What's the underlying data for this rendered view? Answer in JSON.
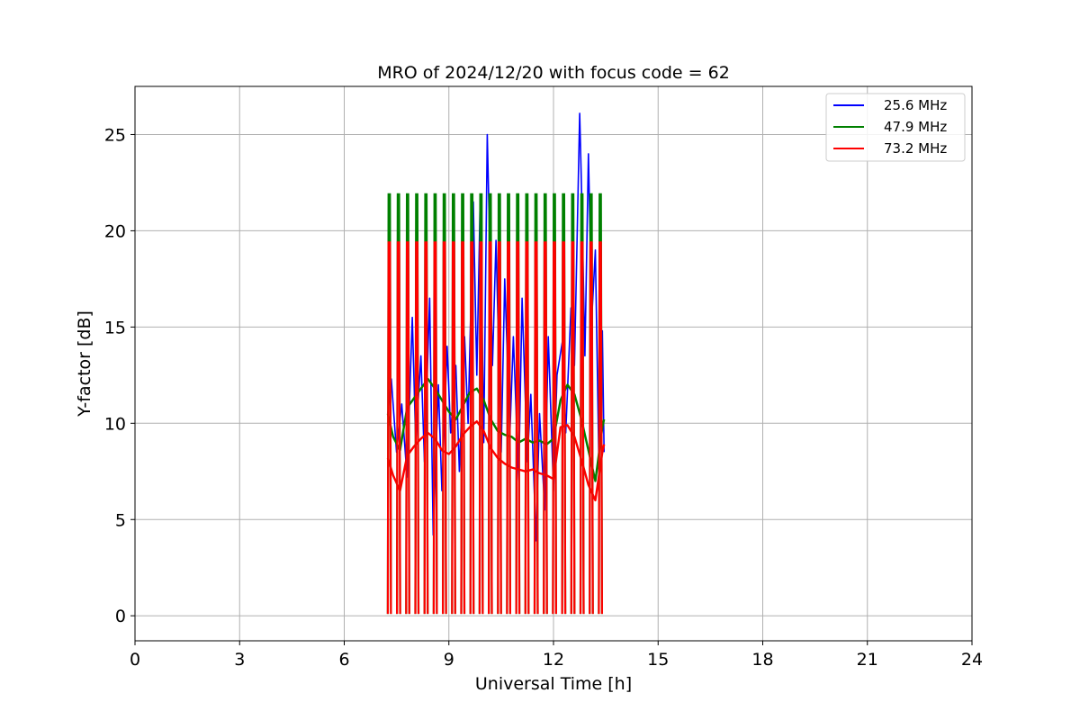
{
  "chart_data": {
    "type": "line",
    "title": "MRO of 2024/12/20 with focus code = 62",
    "xlabel": "Universal Time [h]",
    "ylabel": "Y-factor [dB]",
    "xlim": [
      0,
      24
    ],
    "ylim": [
      -1.3,
      27.5
    ],
    "xticks": [
      0,
      3,
      6,
      9,
      12,
      15,
      18,
      21,
      24
    ],
    "yticks": [
      0,
      5,
      10,
      15,
      20,
      25
    ],
    "grid": true,
    "legend_position": "top-right",
    "series": [
      {
        "name": "25.6 MHz",
        "color": "#0000ff",
        "x": [
          7.25,
          7.35,
          7.5,
          7.65,
          7.8,
          7.95,
          8.05,
          8.2,
          8.3,
          8.45,
          8.55,
          8.7,
          8.8,
          8.95,
          9.05,
          9.2,
          9.3,
          9.45,
          9.55,
          9.7,
          9.8,
          9.9,
          10.0,
          10.1,
          10.25,
          10.35,
          10.5,
          10.6,
          10.75,
          10.85,
          11.0,
          11.1,
          11.25,
          11.35,
          11.5,
          11.6,
          11.75,
          11.85,
          12.0,
          12.1,
          12.25,
          12.35,
          12.5,
          12.6,
          12.75,
          12.8,
          12.9,
          13.0,
          13.1,
          13.2,
          13.3,
          13.4,
          13.45
        ],
        "y": [
          10.5,
          12.3,
          8.5,
          11.0,
          7.2,
          15.5,
          9.0,
          13.5,
          8.0,
          16.5,
          4.2,
          12.0,
          6.5,
          14.0,
          9.5,
          13.0,
          7.5,
          14.5,
          10.0,
          21.5,
          12.5,
          21.8,
          9.0,
          25.0,
          13.0,
          19.5,
          8.5,
          17.5,
          9.5,
          14.5,
          7.0,
          16.5,
          8.0,
          11.5,
          3.9,
          10.5,
          5.5,
          14.5,
          6.5,
          12.5,
          14.2,
          9.5,
          16.0,
          13.0,
          26.1,
          22.5,
          13.5,
          24.0,
          15.5,
          19.0,
          8.0,
          14.8,
          8.5
        ]
      },
      {
        "name": "47.9 MHz",
        "color": "#008000",
        "x": [
          7.25,
          7.4,
          7.6,
          7.8,
          8.0,
          8.2,
          8.4,
          8.6,
          8.8,
          9.0,
          9.2,
          9.4,
          9.6,
          9.8,
          10.0,
          10.2,
          10.4,
          10.6,
          10.8,
          11.0,
          11.2,
          11.4,
          11.6,
          11.8,
          12.0,
          12.2,
          12.4,
          12.6,
          12.8,
          13.0,
          13.2,
          13.4,
          13.45
        ],
        "y": [
          10.5,
          9.3,
          8.6,
          10.8,
          11.3,
          11.8,
          12.3,
          11.8,
          11.2,
          10.6,
          10.2,
          10.9,
          11.6,
          11.8,
          11.2,
          10.2,
          9.6,
          9.4,
          9.3,
          9.0,
          9.2,
          9.0,
          9.1,
          8.9,
          9.2,
          11.2,
          12.0,
          11.5,
          10.2,
          8.6,
          7.0,
          9.8,
          10.2
        ]
      },
      {
        "name": "73.2 MHz",
        "color": "#ff0000",
        "x": [
          7.25,
          7.4,
          7.6,
          7.8,
          8.0,
          8.2,
          8.4,
          8.6,
          8.8,
          9.0,
          9.2,
          9.4,
          9.6,
          9.8,
          10.0,
          10.2,
          10.4,
          10.6,
          10.8,
          11.0,
          11.2,
          11.4,
          11.6,
          11.8,
          12.0,
          12.2,
          12.4,
          12.6,
          12.8,
          13.0,
          13.2,
          13.4,
          13.45
        ],
        "y": [
          8.2,
          7.3,
          6.5,
          8.3,
          8.8,
          9.2,
          9.5,
          9.2,
          8.6,
          8.4,
          8.8,
          9.4,
          9.8,
          10.1,
          9.6,
          8.7,
          8.2,
          7.9,
          7.7,
          7.6,
          7.5,
          7.6,
          7.4,
          7.3,
          7.1,
          9.8,
          9.9,
          9.3,
          8.1,
          6.8,
          6.0,
          8.5,
          8.9
        ]
      }
    ],
    "calibration_spikes": {
      "start": 7.25,
      "end": 13.3,
      "count": 24,
      "peaks": [
        {
          "series": "47.9 MHz",
          "value": 21.9,
          "color": "#008000"
        },
        {
          "series": "73.2 MHz",
          "value": 19.4,
          "color": "#ff0000"
        }
      ],
      "trough": 0.1
    }
  }
}
